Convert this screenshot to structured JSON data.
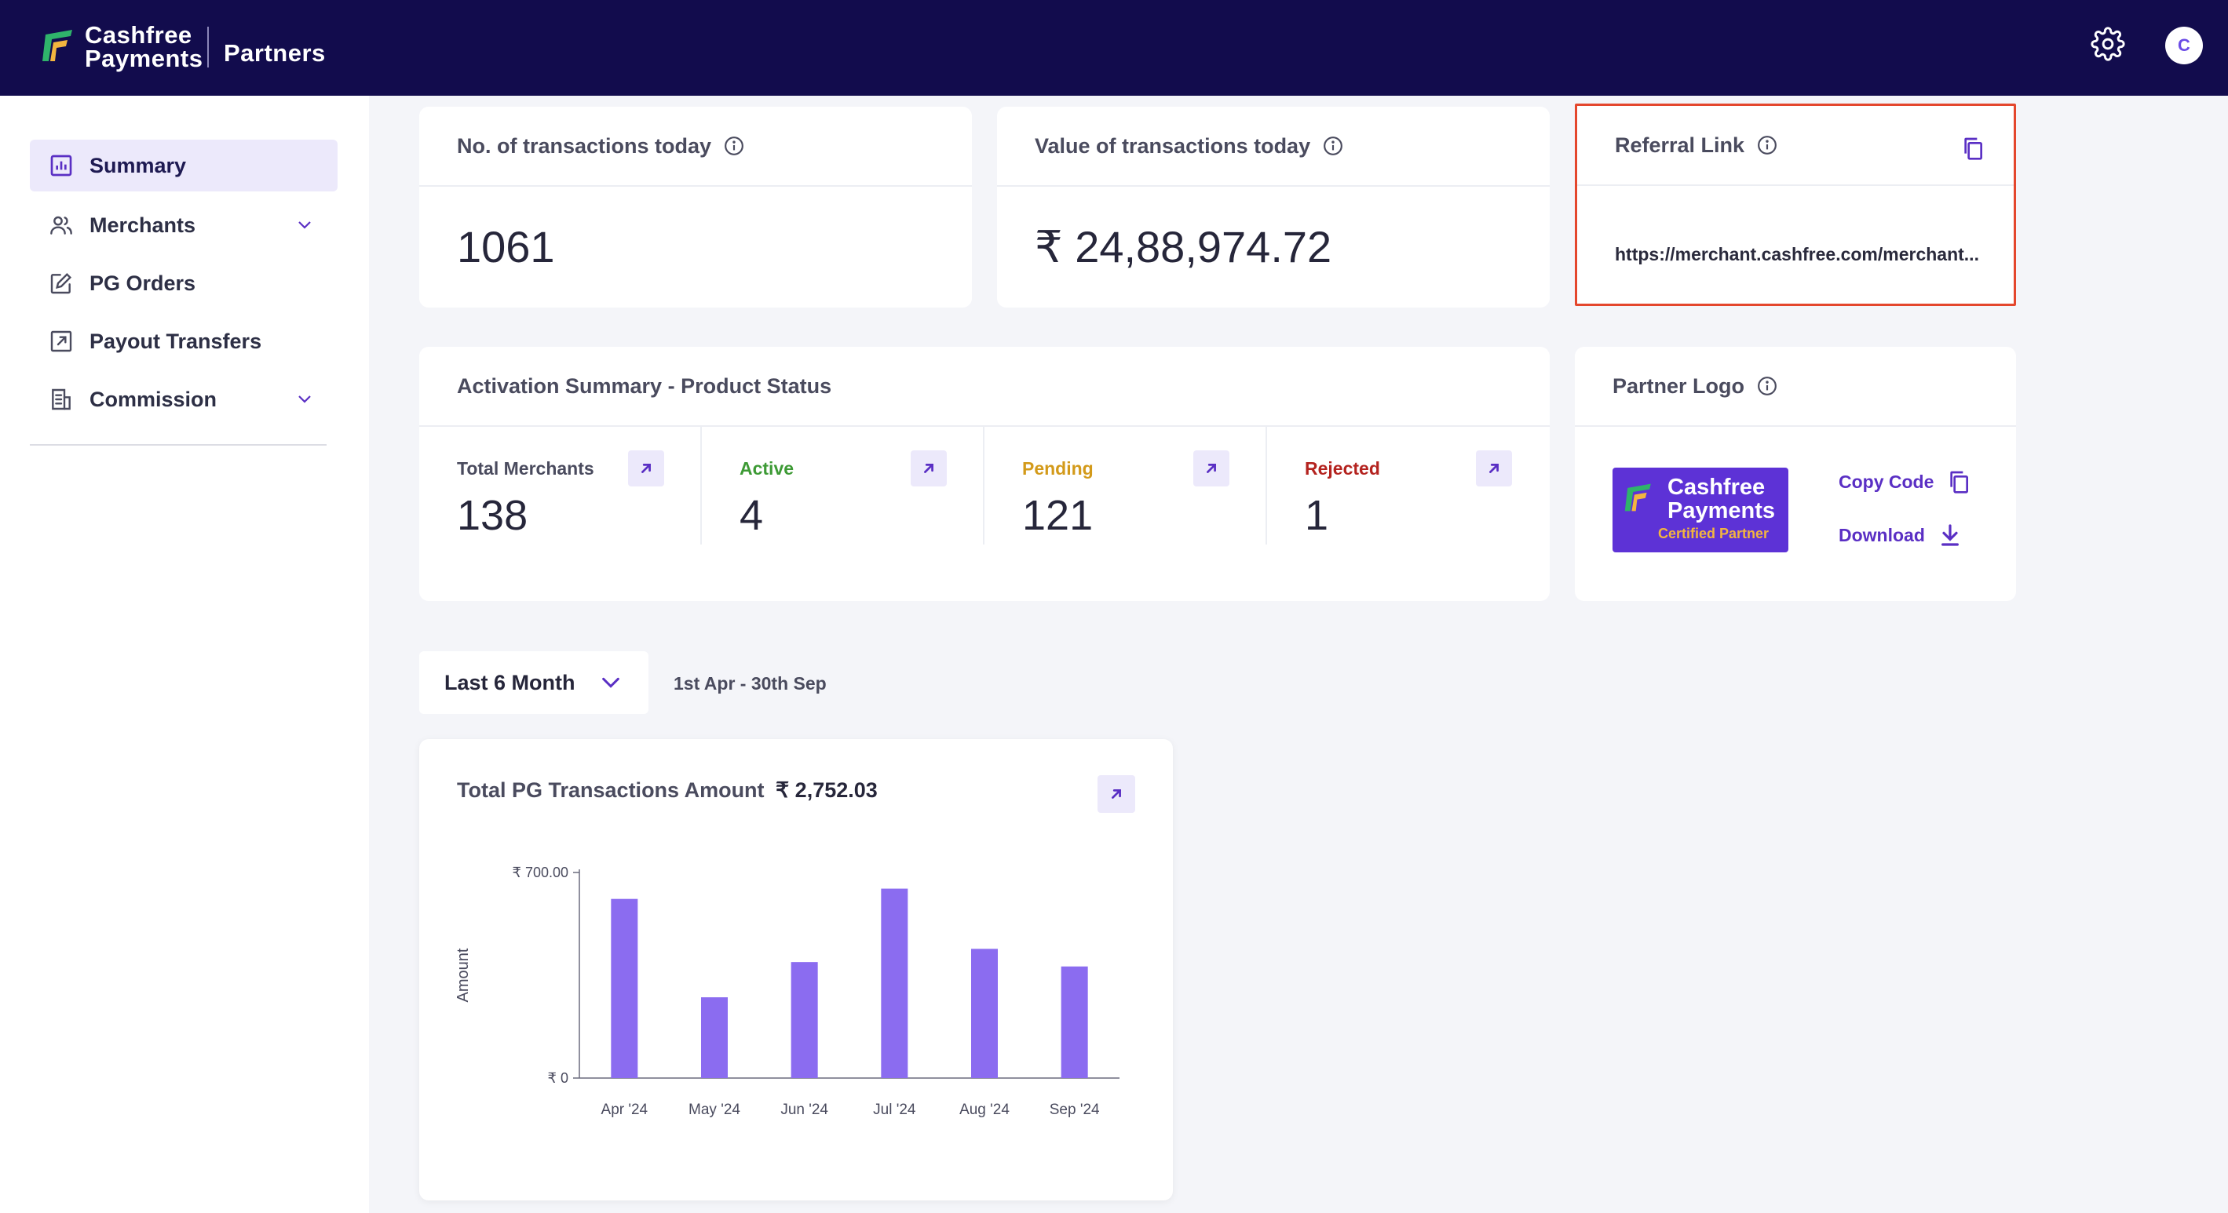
{
  "header": {
    "brand_line1": "Cashfree",
    "brand_line2": "Payments",
    "product": "Partners",
    "avatar_initial": "C",
    "colors": {
      "background": "#120c4d",
      "accent": "#6b4ce6"
    }
  },
  "sidebar": {
    "items": [
      {
        "label": "Summary",
        "icon": "bar-chart-icon",
        "active": true
      },
      {
        "label": "Merchants",
        "icon": "users-icon",
        "expandable": true
      },
      {
        "label": "PG Orders",
        "icon": "edit-icon"
      },
      {
        "label": "Payout Transfers",
        "icon": "external-link-icon"
      },
      {
        "label": "Commission",
        "icon": "receipt-icon",
        "expandable": true
      }
    ]
  },
  "cards": {
    "transactions_count": {
      "title": "No. of transactions today",
      "value": "1061"
    },
    "transactions_value": {
      "title": "Value of transactions today",
      "value": "₹ 24,88,974.72"
    },
    "referral": {
      "title": "Referral Link",
      "url": "https://merchant.cashfree.com/merchant..."
    },
    "activation": {
      "title": "Activation Summary - Product Status",
      "statuses": [
        {
          "label": "Total Merchants",
          "value": "138",
          "color": "#4a4b5e"
        },
        {
          "label": "Active",
          "value": "4",
          "color": "#3d9a35"
        },
        {
          "label": "Pending",
          "value": "121",
          "color": "#d39a1a"
        },
        {
          "label": "Rejected",
          "value": "1",
          "color": "#b4231f"
        }
      ]
    },
    "partner_logo": {
      "title": "Partner Logo",
      "badge_line1": "Cashfree",
      "badge_line2": "Payments",
      "badge_tag": "Certified Partner",
      "copy_label": "Copy Code",
      "download_label": "Download"
    }
  },
  "filter": {
    "selected": "Last 6 Month",
    "date_range": "1st Apr - 30th Sep"
  },
  "chart_card": {
    "title": "Total PG Transactions Amount",
    "total": "₹ 2,752.03"
  },
  "chart_data": {
    "type": "bar",
    "categories": [
      "Apr '24",
      "May '24",
      "Jun '24",
      "Jul '24",
      "Aug '24",
      "Sep '24"
    ],
    "values": [
      610,
      275,
      395,
      645,
      440,
      380
    ],
    "ylabel": "Amount",
    "y_tick_labels": [
      "₹ 0",
      "₹ 700.00"
    ],
    "ylim": [
      0,
      700
    ],
    "grid": false,
    "bar_color": "#8b6cf0"
  }
}
